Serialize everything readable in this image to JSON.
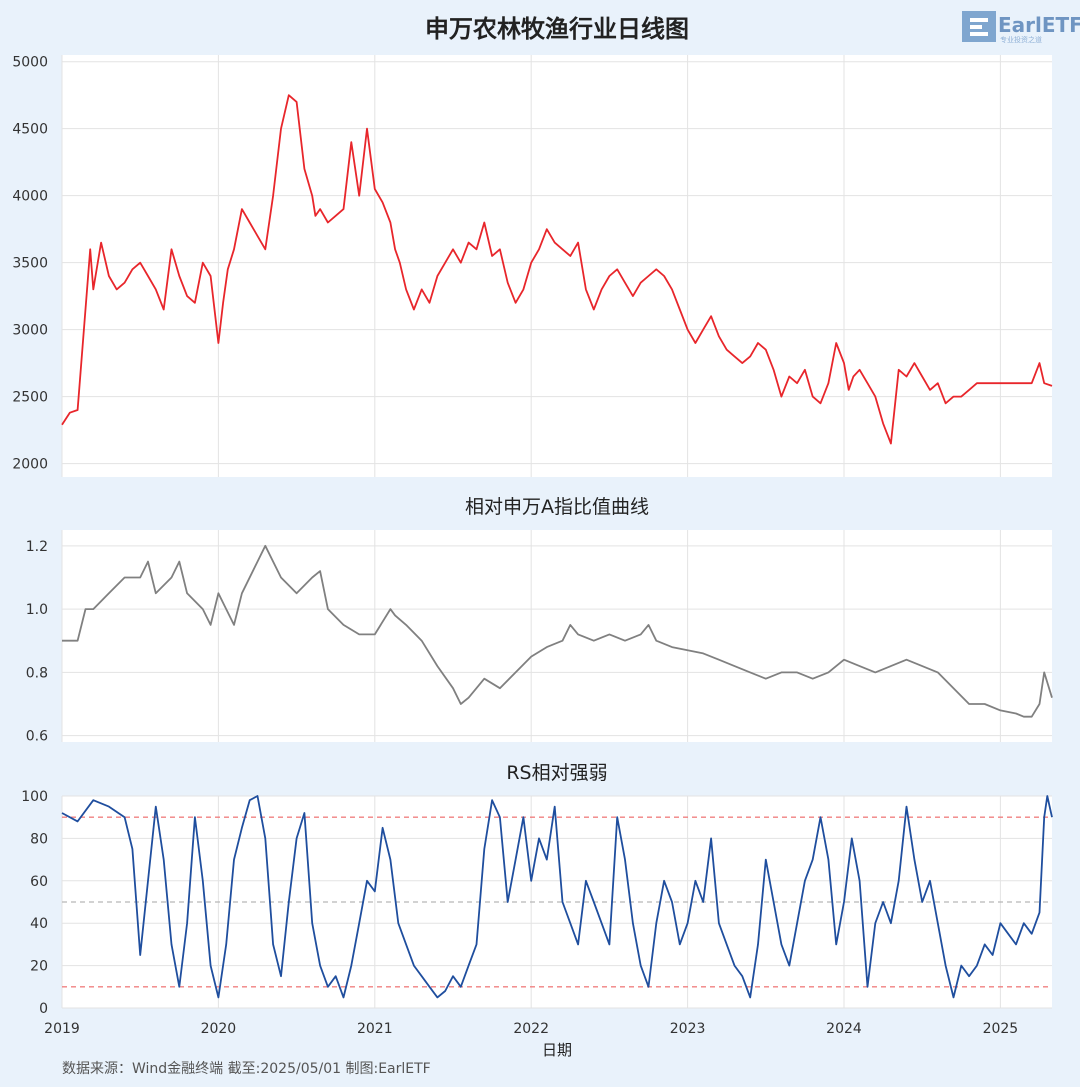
{
  "logo": {
    "text": "EarlETF",
    "subtext": "专业投资之道"
  },
  "source_text": "数据来源：Wind金融终端 截至:2025/05/01 制图:EarlETF",
  "chart_data": [
    {
      "id": "price",
      "type": "line",
      "title": "申万农林牧渔行业日线图",
      "xlabel": "",
      "ylabel": "",
      "xlim": [
        2019.0,
        2025.33
      ],
      "ylim": [
        1900,
        5050
      ],
      "yticks": [
        2000,
        2500,
        3000,
        3500,
        4000,
        4500,
        5000
      ],
      "grid": true,
      "series": [
        {
          "color": "#e8262b",
          "x": [
            2019.0,
            2019.05,
            2019.1,
            2019.14,
            2019.18,
            2019.2,
            2019.25,
            2019.3,
            2019.35,
            2019.4,
            2019.45,
            2019.5,
            2019.55,
            2019.6,
            2019.65,
            2019.7,
            2019.75,
            2019.8,
            2019.85,
            2019.9,
            2019.95,
            2020.0,
            2020.03,
            2020.06,
            2020.1,
            2020.15,
            2020.2,
            2020.25,
            2020.3,
            2020.35,
            2020.4,
            2020.45,
            2020.5,
            2020.55,
            2020.6,
            2020.62,
            2020.65,
            2020.7,
            2020.75,
            2020.8,
            2020.85,
            2020.9,
            2020.95,
            2021.0,
            2021.05,
            2021.1,
            2021.13,
            2021.16,
            2021.2,
            2021.25,
            2021.3,
            2021.35,
            2021.4,
            2021.45,
            2021.5,
            2021.55,
            2021.6,
            2021.65,
            2021.7,
            2021.75,
            2021.8,
            2021.85,
            2021.9,
            2021.95,
            2022.0,
            2022.05,
            2022.1,
            2022.15,
            2022.2,
            2022.25,
            2022.3,
            2022.35,
            2022.4,
            2022.45,
            2022.5,
            2022.55,
            2022.6,
            2022.65,
            2022.7,
            2022.75,
            2022.8,
            2022.85,
            2022.9,
            2022.95,
            2023.0,
            2023.05,
            2023.1,
            2023.15,
            2023.2,
            2023.25,
            2023.3,
            2023.35,
            2023.4,
            2023.45,
            2023.5,
            2023.55,
            2023.6,
            2023.65,
            2023.7,
            2023.75,
            2023.8,
            2023.85,
            2023.9,
            2023.95,
            2024.0,
            2024.03,
            2024.06,
            2024.1,
            2024.15,
            2024.2,
            2024.25,
            2024.3,
            2024.35,
            2024.4,
            2024.45,
            2024.5,
            2024.55,
            2024.6,
            2024.65,
            2024.7,
            2024.75,
            2024.8,
            2024.85,
            2024.9,
            2024.95,
            2025.0,
            2025.05,
            2025.1,
            2025.15,
            2025.2,
            2025.25,
            2025.28,
            2025.33
          ],
          "y": [
            2290,
            2380,
            2400,
            3000,
            3600,
            3300,
            3650,
            3400,
            3300,
            3350,
            3450,
            3500,
            3400,
            3300,
            3150,
            3600,
            3400,
            3250,
            3200,
            3500,
            3400,
            2900,
            3200,
            3450,
            3600,
            3900,
            3800,
            3700,
            3600,
            4000,
            4500,
            4750,
            4700,
            4200,
            4000,
            3850,
            3900,
            3800,
            3850,
            3900,
            4400,
            4000,
            4500,
            4050,
            3950,
            3800,
            3600,
            3500,
            3300,
            3150,
            3300,
            3200,
            3400,
            3500,
            3600,
            3500,
            3650,
            3600,
            3800,
            3550,
            3600,
            3350,
            3200,
            3300,
            3500,
            3600,
            3750,
            3650,
            3600,
            3550,
            3650,
            3300,
            3150,
            3300,
            3400,
            3450,
            3350,
            3250,
            3350,
            3400,
            3450,
            3400,
            3300,
            3150,
            3000,
            2900,
            3000,
            3100,
            2950,
            2850,
            2800,
            2750,
            2800,
            2900,
            2850,
            2700,
            2500,
            2650,
            2600,
            2700,
            2500,
            2450,
            2600,
            2900,
            2750,
            2550,
            2650,
            2700,
            2600,
            2500,
            2300,
            2150,
            2700,
            2650,
            2750,
            2650,
            2550,
            2600,
            2450,
            2500,
            2500,
            2550,
            2600,
            2600,
            2600,
            2600,
            2600,
            2600,
            2600,
            2600,
            2750,
            2600,
            2580
          ]
        }
      ]
    },
    {
      "id": "ratio",
      "type": "line",
      "title": "相对申万A指比值曲线",
      "xlabel": "",
      "ylabel": "",
      "xlim": [
        2019.0,
        2025.33
      ],
      "ylim": [
        0.58,
        1.25
      ],
      "yticks": [
        0.6,
        0.8,
        1.0,
        1.2
      ],
      "grid": true,
      "series": [
        {
          "color": "#808080",
          "x": [
            2019.0,
            2019.1,
            2019.15,
            2019.2,
            2019.3,
            2019.4,
            2019.5,
            2019.55,
            2019.6,
            2019.7,
            2019.75,
            2019.8,
            2019.9,
            2019.95,
            2020.0,
            2020.05,
            2020.1,
            2020.15,
            2020.25,
            2020.3,
            2020.4,
            2020.5,
            2020.6,
            2020.65,
            2020.7,
            2020.8,
            2020.9,
            2021.0,
            2021.1,
            2021.13,
            2021.2,
            2021.3,
            2021.4,
            2021.5,
            2021.55,
            2021.6,
            2021.7,
            2021.8,
            2021.9,
            2022.0,
            2022.1,
            2022.2,
            2022.25,
            2022.3,
            2022.4,
            2022.5,
            2022.6,
            2022.7,
            2022.75,
            2022.8,
            2022.9,
            2023.0,
            2023.1,
            2023.2,
            2023.3,
            2023.4,
            2023.5,
            2023.6,
            2023.7,
            2023.8,
            2023.9,
            2024.0,
            2024.1,
            2024.2,
            2024.3,
            2024.4,
            2024.5,
            2024.6,
            2024.7,
            2024.8,
            2024.9,
            2025.0,
            2025.1,
            2025.15,
            2025.2,
            2025.25,
            2025.28,
            2025.33
          ],
          "y": [
            0.9,
            0.9,
            1.0,
            1.0,
            1.05,
            1.1,
            1.1,
            1.15,
            1.05,
            1.1,
            1.15,
            1.05,
            1.0,
            0.95,
            1.05,
            1.0,
            0.95,
            1.05,
            1.15,
            1.2,
            1.1,
            1.05,
            1.1,
            1.12,
            1.0,
            0.95,
            0.92,
            0.92,
            1.0,
            0.98,
            0.95,
            0.9,
            0.82,
            0.75,
            0.7,
            0.72,
            0.78,
            0.75,
            0.8,
            0.85,
            0.88,
            0.9,
            0.95,
            0.92,
            0.9,
            0.92,
            0.9,
            0.92,
            0.95,
            0.9,
            0.88,
            0.87,
            0.86,
            0.84,
            0.82,
            0.8,
            0.78,
            0.8,
            0.8,
            0.78,
            0.8,
            0.84,
            0.82,
            0.8,
            0.82,
            0.84,
            0.82,
            0.8,
            0.75,
            0.7,
            0.7,
            0.68,
            0.67,
            0.66,
            0.66,
            0.7,
            0.8,
            0.72
          ]
        }
      ]
    },
    {
      "id": "rs",
      "type": "line",
      "title": "RS相对强弱",
      "xlabel": "日期",
      "ylabel": "",
      "xlim": [
        2019.0,
        2025.33
      ],
      "ylim": [
        0,
        100
      ],
      "yticks": [
        0,
        20,
        40,
        60,
        80,
        100
      ],
      "xticks": [
        2019,
        2020,
        2021,
        2022,
        2023,
        2024,
        2025
      ],
      "grid": true,
      "reference_lines": [
        {
          "y": 90,
          "color": "#f08080"
        },
        {
          "y": 50,
          "color": "#b8b8b8"
        },
        {
          "y": 10,
          "color": "#f08080"
        }
      ],
      "series": [
        {
          "color": "#1f4e9e",
          "x": [
            2019.0,
            2019.1,
            2019.2,
            2019.3,
            2019.4,
            2019.45,
            2019.5,
            2019.55,
            2019.6,
            2019.65,
            2019.7,
            2019.75,
            2019.8,
            2019.85,
            2019.9,
            2019.95,
            2020.0,
            2020.05,
            2020.1,
            2020.15,
            2020.2,
            2020.25,
            2020.3,
            2020.35,
            2020.4,
            2020.45,
            2020.5,
            2020.55,
            2020.6,
            2020.65,
            2020.7,
            2020.75,
            2020.8,
            2020.85,
            2020.9,
            2020.95,
            2021.0,
            2021.05,
            2021.1,
            2021.15,
            2021.2,
            2021.25,
            2021.3,
            2021.35,
            2021.4,
            2021.45,
            2021.5,
            2021.55,
            2021.6,
            2021.65,
            2021.7,
            2021.75,
            2021.8,
            2021.85,
            2021.9,
            2021.95,
            2022.0,
            2022.05,
            2022.1,
            2022.15,
            2022.2,
            2022.25,
            2022.3,
            2022.35,
            2022.4,
            2022.45,
            2022.5,
            2022.55,
            2022.6,
            2022.65,
            2022.7,
            2022.75,
            2022.8,
            2022.85,
            2022.9,
            2022.95,
            2023.0,
            2023.05,
            2023.1,
            2023.15,
            2023.2,
            2023.25,
            2023.3,
            2023.35,
            2023.4,
            2023.45,
            2023.5,
            2023.55,
            2023.6,
            2023.65,
            2023.7,
            2023.75,
            2023.8,
            2023.85,
            2023.9,
            2023.95,
            2024.0,
            2024.05,
            2024.1,
            2024.15,
            2024.2,
            2024.25,
            2024.3,
            2024.35,
            2024.4,
            2024.45,
            2024.5,
            2024.55,
            2024.6,
            2024.65,
            2024.7,
            2024.75,
            2024.8,
            2024.85,
            2024.9,
            2024.95,
            2025.0,
            2025.05,
            2025.1,
            2025.15,
            2025.2,
            2025.25,
            2025.28,
            2025.3,
            2025.33
          ],
          "y": [
            92,
            88,
            98,
            95,
            90,
            75,
            25,
            60,
            95,
            70,
            30,
            10,
            40,
            90,
            60,
            20,
            5,
            30,
            70,
            85,
            98,
            100,
            80,
            30,
            15,
            50,
            80,
            92,
            40,
            20,
            10,
            15,
            5,
            20,
            40,
            60,
            55,
            85,
            70,
            40,
            30,
            20,
            15,
            10,
            5,
            8,
            15,
            10,
            20,
            30,
            75,
            98,
            90,
            50,
            70,
            90,
            60,
            80,
            70,
            95,
            50,
            40,
            30,
            60,
            50,
            40,
            30,
            90,
            70,
            40,
            20,
            10,
            40,
            60,
            50,
            30,
            40,
            60,
            50,
            80,
            40,
            30,
            20,
            15,
            5,
            30,
            70,
            50,
            30,
            20,
            40,
            60,
            70,
            90,
            70,
            30,
            50,
            80,
            60,
            10,
            40,
            50,
            40,
            60,
            95,
            70,
            50,
            60,
            40,
            20,
            5,
            20,
            15,
            20,
            30,
            25,
            40,
            35,
            30,
            40,
            35,
            45,
            90,
            100,
            90
          ]
        }
      ]
    }
  ]
}
